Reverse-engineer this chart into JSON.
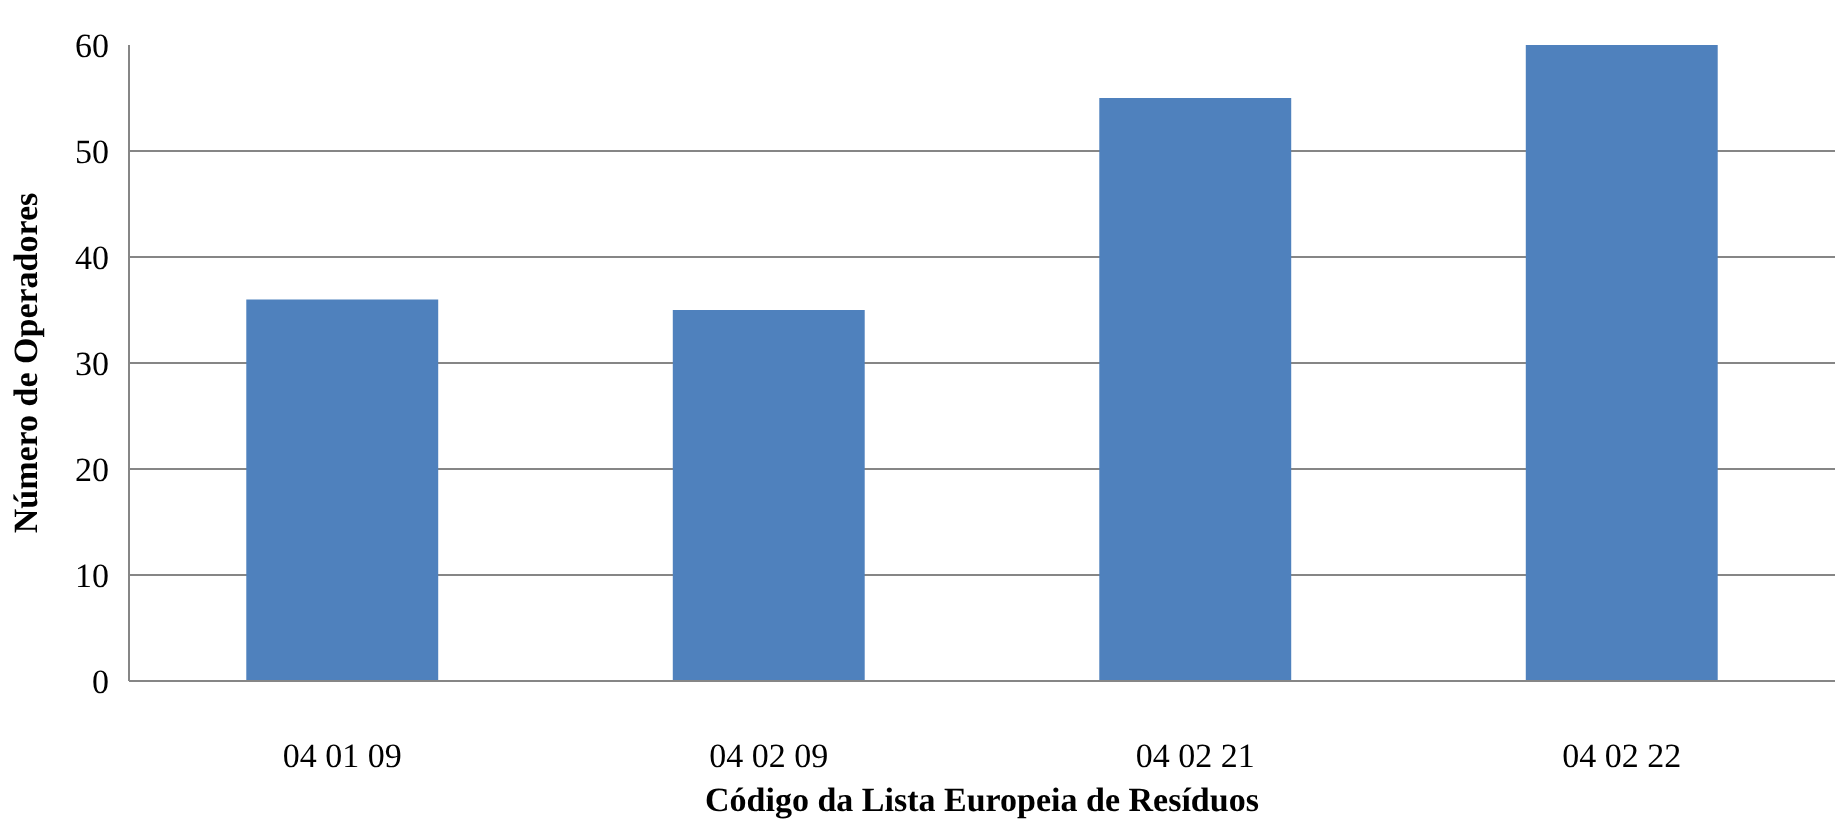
{
  "chart_data": {
    "type": "bar",
    "xlabel": "Código da Lista Europeia de Resíduos",
    "ylabel": "Número de Operadores",
    "categories": [
      "04 01 09",
      "04 02 09",
      "04 02 21",
      "04 02 22"
    ],
    "values": [
      36,
      35,
      55,
      60
    ],
    "color": "#4f81bd",
    "ylim": [
      0,
      60
    ],
    "yticks": [
      0,
      10,
      20,
      30,
      40,
      50,
      60
    ],
    "grid": "y"
  }
}
